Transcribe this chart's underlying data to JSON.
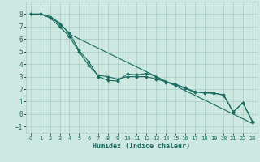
{
  "xlabel": "Humidex (Indice chaleur)",
  "xlim": [
    -0.5,
    23.5
  ],
  "ylim": [
    -1.5,
    9.0
  ],
  "yticks": [
    -1,
    0,
    1,
    2,
    3,
    4,
    5,
    6,
    7,
    8
  ],
  "xticks": [
    0,
    1,
    2,
    3,
    4,
    5,
    6,
    7,
    8,
    9,
    10,
    11,
    12,
    13,
    14,
    15,
    16,
    17,
    18,
    19,
    20,
    21,
    22,
    23
  ],
  "background_color": "#cde8e0",
  "grid_color": "#a8ccC4",
  "line_color": "#1a6b60",
  "straight_x": [
    0,
    1,
    2,
    3,
    4,
    23
  ],
  "straight_y": [
    8.0,
    8.0,
    7.8,
    7.3,
    6.4,
    -0.75
  ],
  "curveA_x": [
    0,
    1,
    2,
    3,
    4,
    5,
    6,
    7,
    8,
    9,
    10,
    11,
    12,
    13,
    14,
    15,
    16,
    17,
    18,
    19,
    20,
    21,
    22,
    23
  ],
  "curveA_y": [
    8.0,
    8.0,
    7.7,
    7.0,
    6.2,
    5.0,
    3.9,
    3.1,
    3.0,
    2.8,
    3.0,
    3.0,
    3.0,
    2.8,
    2.6,
    2.4,
    2.1,
    1.8,
    1.7,
    1.7,
    1.5,
    0.15,
    0.9,
    -0.65
  ],
  "curveB_x": [
    0,
    1,
    2,
    3,
    4,
    5,
    6,
    7,
    8,
    9,
    10,
    11,
    12,
    13,
    14,
    15,
    16,
    17,
    18,
    19,
    20,
    21,
    22,
    23
  ],
  "curveB_y": [
    8.0,
    8.0,
    7.8,
    7.2,
    6.5,
    5.1,
    4.2,
    3.0,
    2.7,
    2.65,
    3.2,
    3.15,
    3.25,
    3.0,
    2.55,
    2.35,
    2.05,
    1.75,
    1.72,
    1.65,
    1.55,
    0.18,
    0.92,
    -0.6
  ]
}
